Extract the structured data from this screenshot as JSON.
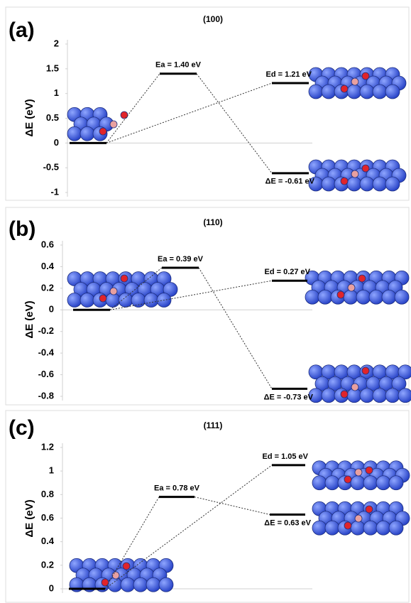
{
  "chart_data": [
    {
      "type": "energy-level",
      "panel_label": "(a)",
      "title": "(100)",
      "y_label": "ΔE (eV)",
      "ylim": [
        -1,
        2
      ],
      "yticks": [
        -1,
        -0.5,
        0,
        0.5,
        1,
        1.5,
        2
      ],
      "color": "#000000",
      "values": [
        0,
        1.4,
        1.21,
        -0.61
      ],
      "value_labels": [
        null,
        "Ea = 1.40 eV",
        "Ed = 1.21 eV",
        "ΔE = -0.61 eV"
      ]
    },
    {
      "type": "energy-level",
      "panel_label": "(b)",
      "title": "(110)",
      "y_label": "ΔE (eV)",
      "ylim": [
        -0.8,
        0.6
      ],
      "yticks": [
        -0.8,
        -0.6,
        -0.4,
        -0.2,
        0,
        0.2,
        0.4,
        0.6
      ],
      "color": "#000000",
      "values": [
        0,
        0.39,
        0.27,
        -0.73
      ],
      "value_labels": [
        null,
        "Ea = 0.39 eV",
        "Ed = 0.27 eV",
        "ΔE = -0.73 eV"
      ]
    },
    {
      "type": "energy-level",
      "panel_label": "(c)",
      "title": "(111)",
      "y_label": "ΔE (eV)",
      "ylim": [
        0,
        1.2
      ],
      "yticks": [
        0,
        0.2,
        0.4,
        0.6,
        0.8,
        1,
        1.2
      ],
      "color": "#000000",
      "values": [
        0,
        0.78,
        1.05,
        0.63
      ],
      "value_labels": [
        null,
        "Ea = 0.78 eV",
        "Ed = 1.05 eV",
        "ΔE = 0.63 eV"
      ]
    }
  ]
}
